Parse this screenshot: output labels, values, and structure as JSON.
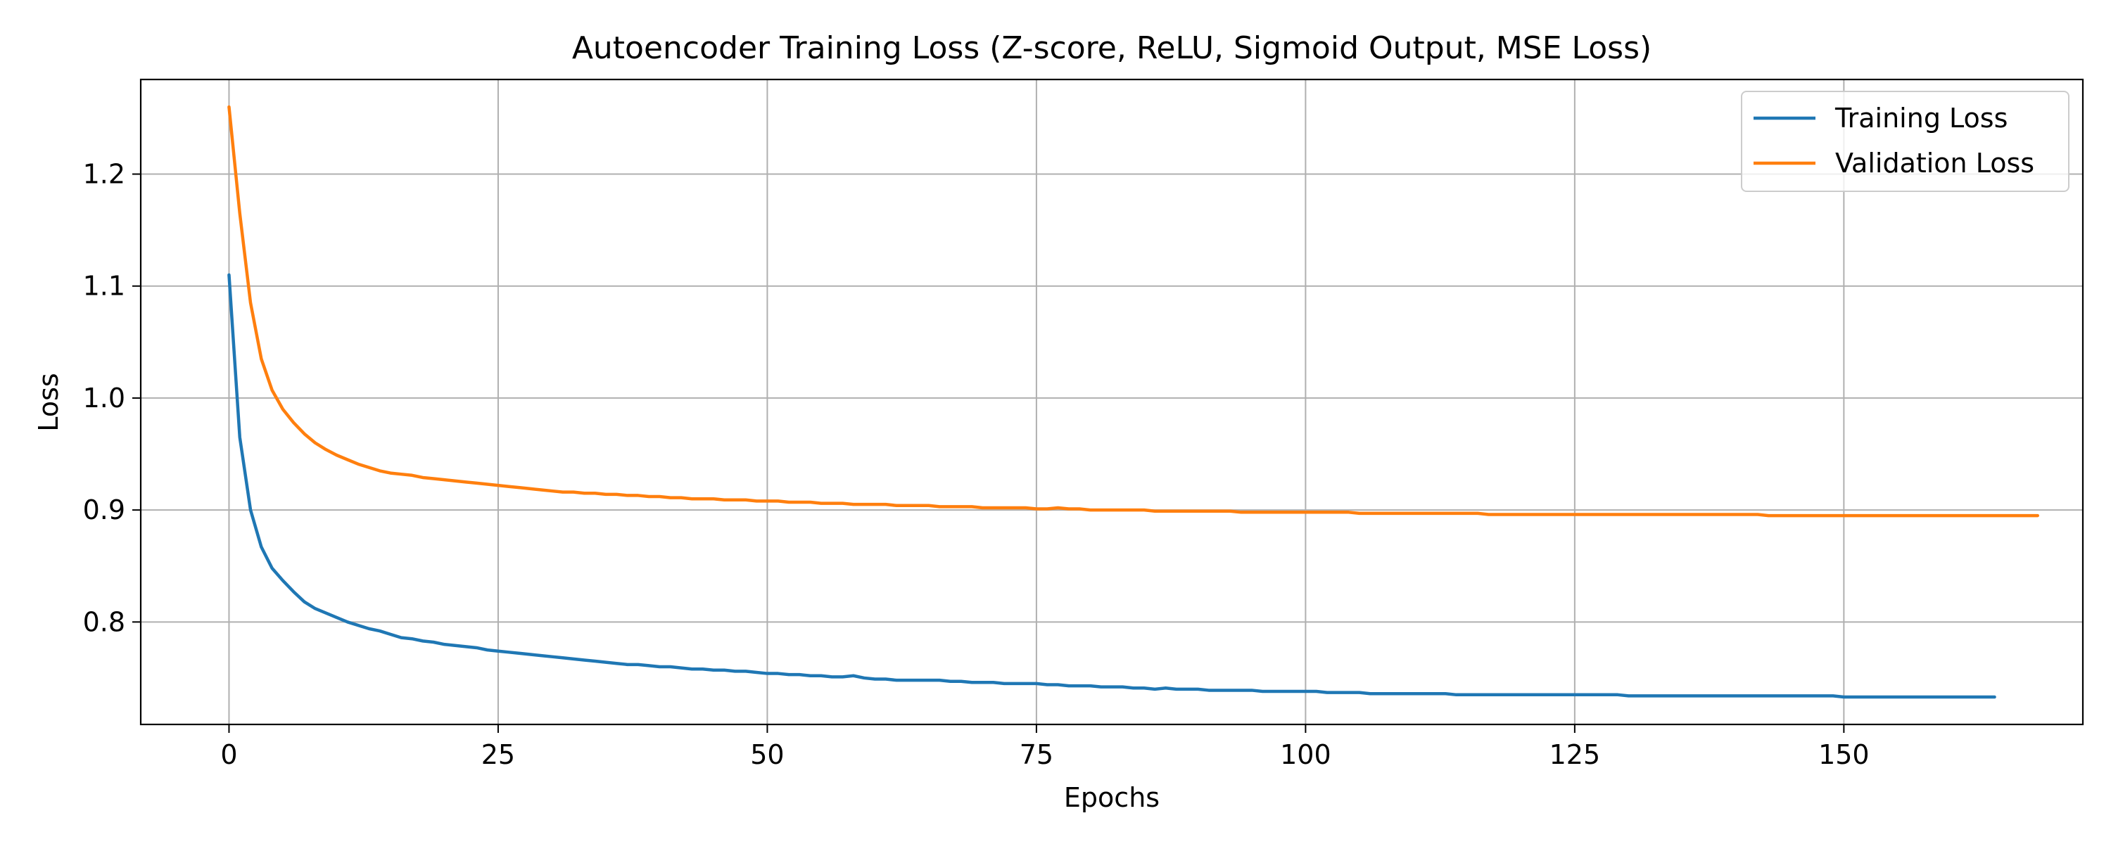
{
  "chart_data": {
    "type": "line",
    "title": "Autoencoder Training Loss (Z-score, ReLU, Sigmoid Output, MSE Loss)",
    "xlabel": "Epochs",
    "ylabel": "Loss",
    "xlim": [
      -8.2,
      172.2
    ],
    "ylim": [
      0.7085,
      1.2845
    ],
    "x_ticks": [
      0,
      25,
      50,
      75,
      100,
      125,
      150
    ],
    "y_ticks": [
      0.8,
      0.9,
      1.0,
      1.1,
      1.2
    ],
    "x_tick_labels": [
      "0",
      "25",
      "50",
      "75",
      "100",
      "125",
      "150"
    ],
    "y_tick_labels": [
      "0.8",
      "0.9",
      "1.0",
      "1.1",
      "1.2"
    ],
    "grid": true,
    "legend_position": "top-right",
    "series": [
      {
        "name": "Training Loss",
        "color": "#1f77b4",
        "values": [
          1.11,
          0.965,
          0.9,
          0.867,
          0.848,
          0.837,
          0.827,
          0.818,
          0.812,
          0.808,
          0.804,
          0.8,
          0.797,
          0.794,
          0.792,
          0.789,
          0.786,
          0.785,
          0.783,
          0.782,
          0.78,
          0.779,
          0.778,
          0.777,
          0.775,
          0.774,
          0.773,
          0.772,
          0.771,
          0.77,
          0.769,
          0.768,
          0.767,
          0.766,
          0.765,
          0.764,
          0.763,
          0.762,
          0.762,
          0.761,
          0.76,
          0.76,
          0.759,
          0.758,
          0.758,
          0.757,
          0.757,
          0.756,
          0.756,
          0.755,
          0.754,
          0.754,
          0.753,
          0.753,
          0.752,
          0.752,
          0.751,
          0.751,
          0.752,
          0.75,
          0.749,
          0.749,
          0.748,
          0.748,
          0.748,
          0.748,
          0.748,
          0.747,
          0.747,
          0.746,
          0.746,
          0.746,
          0.745,
          0.745,
          0.745,
          0.745,
          0.744,
          0.744,
          0.743,
          0.743,
          0.743,
          0.742,
          0.742,
          0.742,
          0.741,
          0.741,
          0.74,
          0.741,
          0.74,
          0.74,
          0.74,
          0.739,
          0.739,
          0.739,
          0.739,
          0.739,
          0.738,
          0.738,
          0.738,
          0.738,
          0.738,
          0.738,
          0.737,
          0.737,
          0.737,
          0.737,
          0.736,
          0.736,
          0.736,
          0.736,
          0.736,
          0.736,
          0.736,
          0.736,
          0.735,
          0.735,
          0.735,
          0.735,
          0.735,
          0.735,
          0.735,
          0.735,
          0.735,
          0.735,
          0.735,
          0.735,
          0.735,
          0.735,
          0.735,
          0.735,
          0.734,
          0.734,
          0.734,
          0.734,
          0.734,
          0.734,
          0.734,
          0.734,
          0.734,
          0.734,
          0.734,
          0.734,
          0.734,
          0.734,
          0.734,
          0.734,
          0.734,
          0.734,
          0.734,
          0.734,
          0.733,
          0.733,
          0.733,
          0.733,
          0.733,
          0.733,
          0.733,
          0.733,
          0.733,
          0.733,
          0.733,
          0.733,
          0.733,
          0.733,
          0.733
        ]
      },
      {
        "name": "Validation Loss",
        "color": "#ff7f0e",
        "values": [
          1.26,
          1.165,
          1.085,
          1.035,
          1.007,
          0.99,
          0.978,
          0.968,
          0.96,
          0.954,
          0.949,
          0.945,
          0.941,
          0.938,
          0.935,
          0.933,
          0.932,
          0.931,
          0.929,
          0.928,
          0.927,
          0.926,
          0.925,
          0.924,
          0.923,
          0.922,
          0.921,
          0.92,
          0.919,
          0.918,
          0.917,
          0.916,
          0.916,
          0.915,
          0.915,
          0.914,
          0.914,
          0.913,
          0.913,
          0.912,
          0.912,
          0.911,
          0.911,
          0.91,
          0.91,
          0.91,
          0.909,
          0.909,
          0.909,
          0.908,
          0.908,
          0.908,
          0.907,
          0.907,
          0.907,
          0.906,
          0.906,
          0.906,
          0.905,
          0.905,
          0.905,
          0.905,
          0.904,
          0.904,
          0.904,
          0.904,
          0.903,
          0.903,
          0.903,
          0.903,
          0.902,
          0.902,
          0.902,
          0.902,
          0.902,
          0.901,
          0.901,
          0.902,
          0.901,
          0.901,
          0.9,
          0.9,
          0.9,
          0.9,
          0.9,
          0.9,
          0.899,
          0.899,
          0.899,
          0.899,
          0.899,
          0.899,
          0.899,
          0.899,
          0.898,
          0.898,
          0.898,
          0.898,
          0.898,
          0.898,
          0.898,
          0.898,
          0.898,
          0.898,
          0.898,
          0.897,
          0.897,
          0.897,
          0.897,
          0.897,
          0.897,
          0.897,
          0.897,
          0.897,
          0.897,
          0.897,
          0.897,
          0.896,
          0.896,
          0.896,
          0.896,
          0.896,
          0.896,
          0.896,
          0.896,
          0.896,
          0.896,
          0.896,
          0.896,
          0.896,
          0.896,
          0.896,
          0.896,
          0.896,
          0.896,
          0.896,
          0.896,
          0.896,
          0.896,
          0.896,
          0.896,
          0.896,
          0.896,
          0.895,
          0.895,
          0.895,
          0.895,
          0.895,
          0.895,
          0.895,
          0.895,
          0.895,
          0.895,
          0.895,
          0.895,
          0.895,
          0.895,
          0.895,
          0.895,
          0.895,
          0.895,
          0.895,
          0.895,
          0.895,
          0.895,
          0.895,
          0.895,
          0.895,
          0.895
        ]
      }
    ]
  }
}
